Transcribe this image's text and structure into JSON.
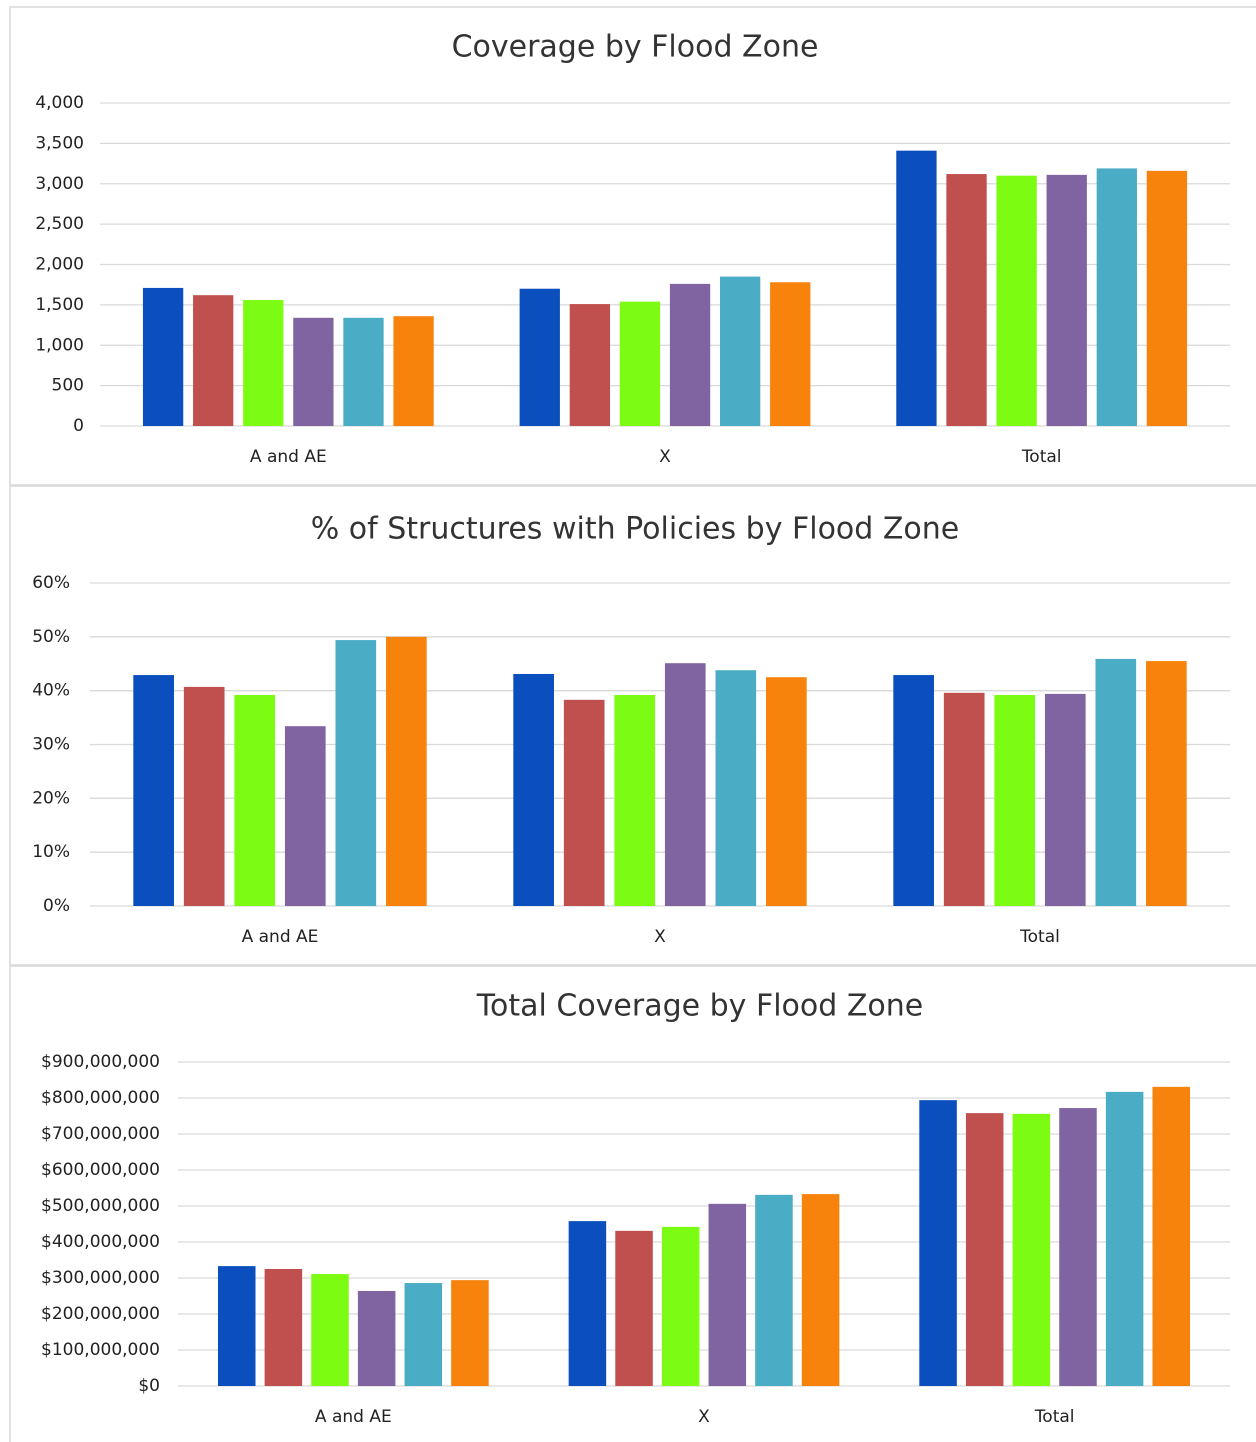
{
  "chart_data": [
    {
      "type": "bar",
      "title": "Coverage by Flood Zone",
      "categories": [
        "A and AE",
        "X",
        "Total"
      ],
      "series": [
        {
          "color": "#0a4fbd",
          "values": [
            1710,
            1700,
            3410
          ]
        },
        {
          "color": "#c0504d",
          "values": [
            1620,
            1510,
            3120
          ]
        },
        {
          "color": "#7cfc12",
          "values": [
            1560,
            1540,
            3100
          ]
        },
        {
          "color": "#8064a2",
          "values": [
            1340,
            1760,
            3110
          ]
        },
        {
          "color": "#4bacc6",
          "values": [
            1340,
            1850,
            3190
          ]
        },
        {
          "color": "#f7820c",
          "values": [
            1360,
            1780,
            3160
          ]
        }
      ],
      "ylim": [
        0,
        4000
      ],
      "yticks": [
        0,
        500,
        {
          "value": 1000,
          "label": "1,000"
        },
        {
          "value": 1500,
          "label": "1,500"
        },
        {
          "value": 2000,
          "label": "2,000"
        },
        {
          "value": 2500,
          "label": "2,500"
        },
        {
          "value": 3000,
          "label": "3,000"
        },
        {
          "value": 3500,
          "label": "3,500"
        },
        {
          "value": 4000,
          "label": "4,000"
        }
      ],
      "grid": true
    },
    {
      "type": "bar",
      "title": "% of Structures with Policies by Flood Zone",
      "categories": [
        "A and AE",
        "X",
        "Total"
      ],
      "series": [
        {
          "color": "#0a4fbd",
          "values": [
            42.9,
            43.1,
            42.9
          ]
        },
        {
          "color": "#c0504d",
          "values": [
            40.7,
            38.3,
            39.6
          ]
        },
        {
          "color": "#7cfc12",
          "values": [
            39.2,
            39.2,
            39.2
          ]
        },
        {
          "color": "#8064a2",
          "values": [
            33.4,
            45.1,
            39.4
          ]
        },
        {
          "color": "#4bacc6",
          "values": [
            49.4,
            43.8,
            45.9
          ]
        },
        {
          "color": "#f7820c",
          "values": [
            50.0,
            42.5,
            45.5
          ]
        }
      ],
      "ylim": [
        0,
        60
      ],
      "yticks": [
        {
          "value": 0,
          "label": "0%"
        },
        {
          "value": 10,
          "label": "10%"
        },
        {
          "value": 20,
          "label": "20%"
        },
        {
          "value": 30,
          "label": "30%"
        },
        {
          "value": 40,
          "label": "40%"
        },
        {
          "value": 50,
          "label": "50%"
        },
        {
          "value": 60,
          "label": "60%"
        }
      ],
      "grid": true
    },
    {
      "type": "bar",
      "title": "Total Coverage by Flood Zone",
      "categories": [
        "A and AE",
        "X",
        "Total"
      ],
      "series": [
        {
          "color": "#0a4fbd",
          "values": [
            333000000,
            458000000,
            794000000
          ]
        },
        {
          "color": "#c0504d",
          "values": [
            325000000,
            431000000,
            758000000
          ]
        },
        {
          "color": "#7cfc12",
          "values": [
            311000000,
            442000000,
            756000000
          ]
        },
        {
          "color": "#8064a2",
          "values": [
            264000000,
            506000000,
            772000000
          ]
        },
        {
          "color": "#4bacc6",
          "values": [
            286000000,
            531000000,
            817000000
          ]
        },
        {
          "color": "#f7820c",
          "values": [
            294000000,
            533000000,
            831000000
          ]
        }
      ],
      "ylim": [
        0,
        900000000
      ],
      "yticks": [
        {
          "value": 0,
          "label": "$0"
        },
        {
          "value": 100000000,
          "label": "$100,000,000"
        },
        {
          "value": 200000000,
          "label": "$200,000,000"
        },
        {
          "value": 300000000,
          "label": "$300,000,000"
        },
        {
          "value": 400000000,
          "label": "$400,000,000"
        },
        {
          "value": 500000000,
          "label": "$500,000,000"
        },
        {
          "value": 600000000,
          "label": "$600,000,000"
        },
        {
          "value": 700000000,
          "label": "$700,000,000"
        },
        {
          "value": 800000000,
          "label": "$800,000,000"
        },
        {
          "value": 900000000,
          "label": "$900,000,000"
        }
      ],
      "grid": true
    }
  ]
}
